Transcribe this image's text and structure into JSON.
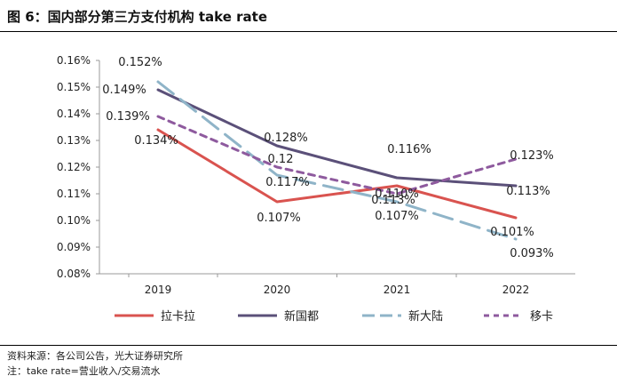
{
  "title": "图 6：国内部分第三方支付机构 take rate",
  "footnotes": {
    "source": "资料来源：各公司公告，光大证券研究所",
    "note": "注：take rate=营业收入/交易流水"
  },
  "chart_data": {
    "type": "line",
    "categories": [
      "2019",
      "2020",
      "2021",
      "2022"
    ],
    "y_ticks": [
      "0.16%",
      "0.15%",
      "0.14%",
      "0.13%",
      "0.12%",
      "0.11%",
      "0.10%",
      "0.09%",
      "0.08%"
    ],
    "ylim": [
      0.08,
      0.16
    ],
    "grid": false,
    "legend_position": "bottom",
    "series": [
      {
        "name": "拉卡拉",
        "color": "#d9534f",
        "style": "solid",
        "values": [
          0.134,
          0.107,
          0.113,
          0.101
        ],
        "labels": [
          "0.134%",
          "0.107%",
          "0.113%",
          "0.101%"
        ]
      },
      {
        "name": "新国都",
        "color": "#5b5079",
        "style": "solid",
        "values": [
          0.149,
          0.128,
          0.116,
          0.113
        ],
        "labels": [
          "0.149%",
          "0.128%",
          "0.116%",
          "0.113%"
        ]
      },
      {
        "name": "新大陆",
        "color": "#8fb4c8",
        "style": "long-dash",
        "values": [
          0.152,
          0.117,
          0.107,
          0.093
        ],
        "labels": [
          "0.152%",
          "0.117%",
          "0.107%",
          "0.093%"
        ]
      },
      {
        "name": "移卡",
        "color": "#8e5a9e",
        "style": "short-dash",
        "values": [
          0.139,
          0.12,
          0.11,
          0.123
        ],
        "labels": [
          "0.139%",
          "0.12",
          "0.110%",
          "0.123%"
        ]
      }
    ]
  }
}
